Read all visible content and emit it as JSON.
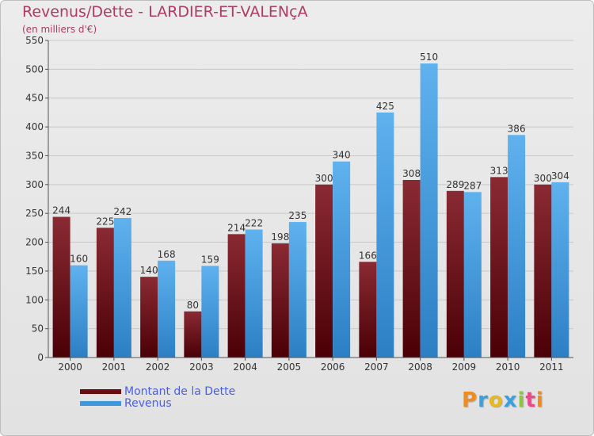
{
  "header": {
    "title": "Revenus/Dette - LARDIER-ET-VALENçA",
    "subtitle": "(en milliers d'€)"
  },
  "legend": {
    "items": [
      {
        "label": "Montant de la Dette",
        "color": "#6b0b12"
      },
      {
        "label": "Revenus",
        "color": "#3f98dc"
      }
    ]
  },
  "logo": {
    "text": "Proxiti"
  },
  "chart_data": {
    "type": "bar",
    "categories": [
      "2000",
      "2001",
      "2002",
      "2003",
      "2004",
      "2005",
      "2006",
      "2007",
      "2008",
      "2009",
      "2010",
      "2011"
    ],
    "series": [
      {
        "name": "Montant de la Dette",
        "values": [
          244,
          225,
          140,
          80,
          214,
          198,
          300,
          166,
          308,
          289,
          313,
          300
        ]
      },
      {
        "name": "Revenus",
        "values": [
          160,
          242,
          168,
          159,
          222,
          235,
          340,
          425,
          510,
          287,
          386,
          304
        ]
      }
    ],
    "ylim": [
      0,
      550
    ],
    "yticks": [
      0,
      50,
      100,
      150,
      200,
      250,
      300,
      350,
      400,
      450,
      500,
      550
    ],
    "grid": true,
    "legend_position": "bottom-left"
  }
}
